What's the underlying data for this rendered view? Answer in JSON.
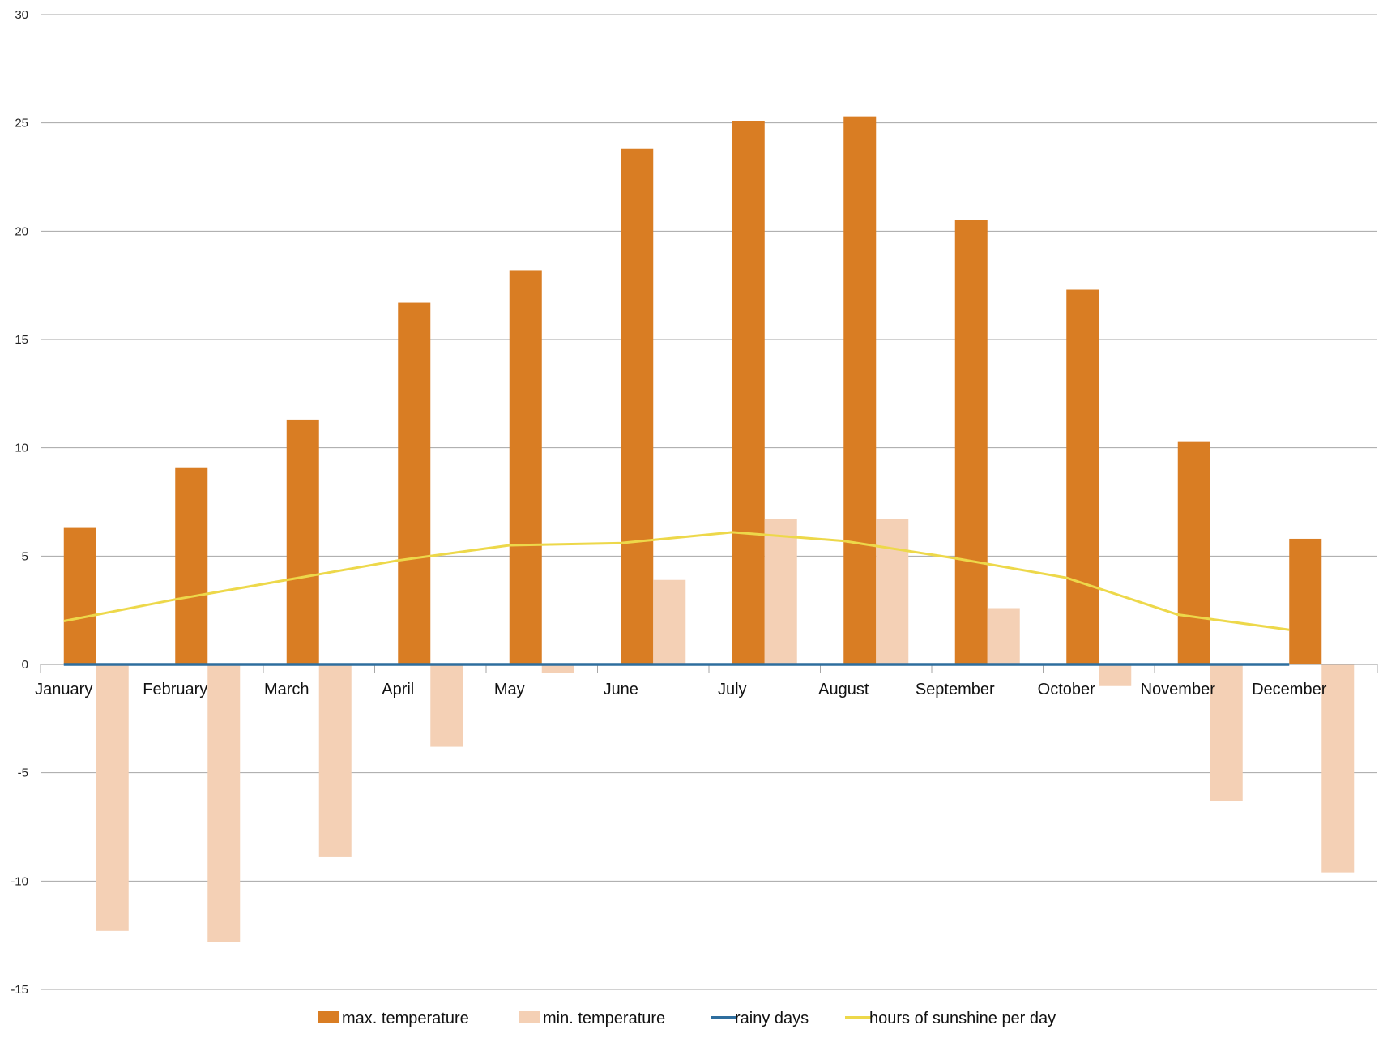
{
  "chart_data": {
    "type": "bar",
    "categories": [
      "January",
      "February",
      "March",
      "April",
      "May",
      "June",
      "July",
      "August",
      "September",
      "October",
      "November",
      "December"
    ],
    "series": [
      {
        "name": "max.  temperature",
        "type": "bar",
        "color": "#D97D23",
        "values": [
          6.3,
          9.1,
          11.3,
          16.7,
          18.2,
          23.8,
          25.1,
          25.3,
          20.5,
          17.3,
          10.3,
          5.8
        ]
      },
      {
        "name": "min. temperature",
        "type": "bar",
        "color": "#F4D0B5",
        "values": [
          -12.3,
          -12.8,
          -8.9,
          -3.8,
          -0.4,
          3.9,
          6.7,
          6.7,
          2.6,
          -1.0,
          -6.3,
          -9.6
        ]
      },
      {
        "name": "rainy days",
        "type": "line",
        "color": "#2E6E9E",
        "values": [
          0,
          0,
          0,
          0,
          0,
          0,
          0,
          0,
          0,
          0,
          0,
          0
        ]
      },
      {
        "name": "hours of sunshine per day",
        "type": "line",
        "color": "#EDD84A",
        "values": [
          2.0,
          3.0,
          3.9,
          4.8,
          5.5,
          5.6,
          6.1,
          5.7,
          4.9,
          4.0,
          2.3,
          1.6
        ]
      }
    ],
    "y_ticks": [
      "30",
      "25",
      "20",
      "15",
      "10",
      "5",
      "0",
      "-5",
      "-10",
      "-15"
    ],
    "ylim": [
      -15,
      30
    ],
    "title": "",
    "xlabel": "",
    "ylabel": "",
    "grid": true,
    "legend_position": "bottom"
  }
}
